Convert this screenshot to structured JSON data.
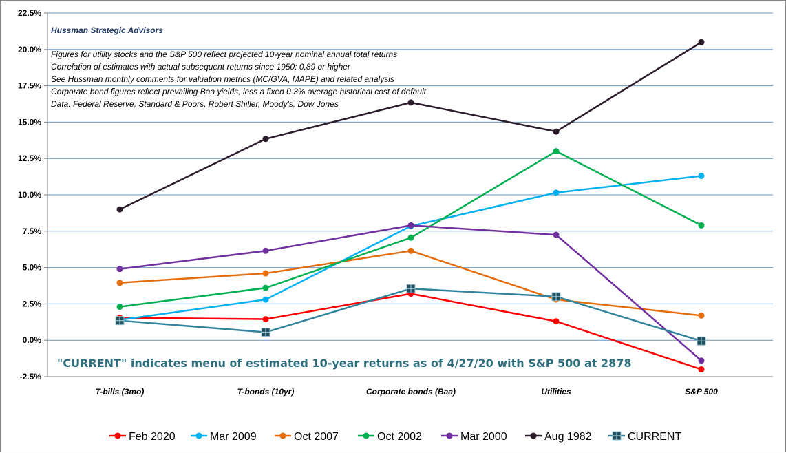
{
  "chart_data": {
    "type": "line",
    "categories": [
      "T-bills (3mo)",
      "T-bonds (10yr)",
      "Corporate bonds (Baa)",
      "Utilities",
      "S&P 500"
    ],
    "ylim": [
      -2.5,
      22.5
    ],
    "yticks": [
      -2.5,
      0.0,
      2.5,
      5.0,
      7.5,
      10.0,
      12.5,
      15.0,
      17.5,
      20.0,
      22.5
    ],
    "ytick_labels": [
      "-2.5%",
      "0.0%",
      "2.5%",
      "5.0%",
      "7.5%",
      "10.0%",
      "12.5%",
      "15.0%",
      "17.5%",
      "20.0%",
      "22.5%"
    ],
    "grid": true,
    "legend_position": "bottom",
    "source_label": "Hussman Strategic Advisors",
    "notes": [
      "Figures for utility stocks and the S&P 500  reflect projected 10-year nominal annual total returns",
      "Correlation of estimates with actual subsequent returns since 1950:  0.89 or higher",
      "See Hussman monthly comments for valuation metrics (MC/GVA, MAPE) and related analysis",
      "Corporate bond figures reflect prevailing Baa yields, less a fixed 0.3% average historical cost of default",
      "Data: Federal Reserve, Standard & Poors, Robert Shiller, Moody's, Dow Jones"
    ],
    "banner": "\"CURRENT\" indicates menu of estimated 10-year returns as of 4/27/20 with S&P 500 at 2878",
    "series": [
      {
        "name": "Feb 2020",
        "color": "#ff0000",
        "marker": "circle",
        "values": [
          1.55,
          1.45,
          3.2,
          1.3,
          -2.0
        ]
      },
      {
        "name": "Mar 2009",
        "color": "#00b0f0",
        "marker": "circle",
        "values": [
          1.4,
          2.8,
          7.85,
          10.15,
          11.3
        ]
      },
      {
        "name": "Oct 2007",
        "color": "#e46c0a",
        "marker": "circle",
        "values": [
          3.95,
          4.6,
          6.15,
          2.8,
          1.7
        ]
      },
      {
        "name": "Oct 2002",
        "color": "#00b050",
        "marker": "circle",
        "values": [
          2.3,
          3.6,
          7.05,
          13.0,
          7.9
        ]
      },
      {
        "name": "Mar 2000",
        "color": "#7030a0",
        "marker": "circle",
        "values": [
          4.9,
          6.15,
          7.9,
          7.25,
          -1.4
        ]
      },
      {
        "name": "Aug 1982",
        "color": "#2b1b2b",
        "marker": "circle",
        "values": [
          9.0,
          13.85,
          16.35,
          14.35,
          20.5
        ]
      },
      {
        "name": "CURRENT",
        "color": "#31849b",
        "marker": "square",
        "values": [
          1.35,
          0.55,
          3.55,
          3.0,
          -0.05
        ]
      }
    ]
  }
}
